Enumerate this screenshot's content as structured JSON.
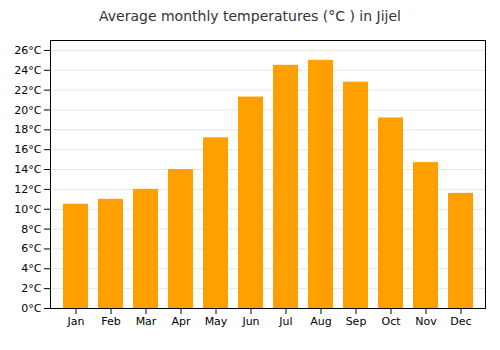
{
  "chart_data": {
    "type": "bar",
    "title": "Average monthly temperatures (°C ) in Jijel",
    "categories": [
      "Jan",
      "Feb",
      "Mar",
      "Apr",
      "May",
      "Jun",
      "Jul",
      "Aug",
      "Sep",
      "Oct",
      "Nov",
      "Dec"
    ],
    "values": [
      10.5,
      11.0,
      12.0,
      14.0,
      17.2,
      21.3,
      24.5,
      25.0,
      22.8,
      19.2,
      14.7,
      11.6
    ],
    "color": "#FFA000",
    "ylim": [
      0,
      27
    ],
    "yticks": [
      {
        "value": 0,
        "label": "0°C"
      },
      {
        "value": 2,
        "label": "2°C"
      },
      {
        "value": 4,
        "label": "4°C"
      },
      {
        "value": 6,
        "label": "6°C"
      },
      {
        "value": 8,
        "label": "8°C"
      },
      {
        "value": 10,
        "label": "10°C"
      },
      {
        "value": 12,
        "label": "12°C"
      },
      {
        "value": 14,
        "label": "14°C"
      },
      {
        "value": 16,
        "label": "16°C"
      },
      {
        "value": 18,
        "label": "18°C"
      },
      {
        "value": 20,
        "label": "20°C"
      },
      {
        "value": 22,
        "label": "22°C"
      },
      {
        "value": 24,
        "label": "24°C"
      },
      {
        "value": 26,
        "label": "26°C"
      }
    ],
    "grid": true
  }
}
